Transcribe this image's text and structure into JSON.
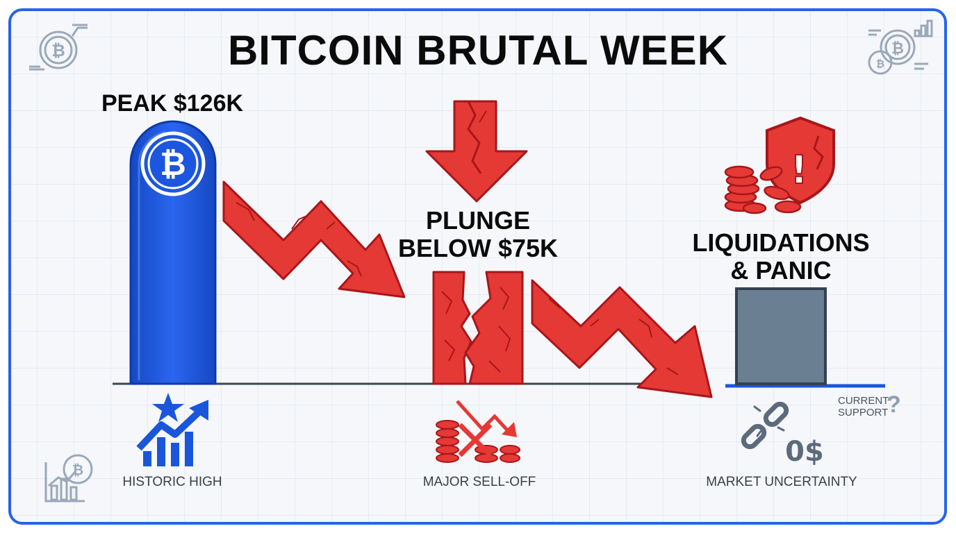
{
  "title": "BITCOIN BRUTAL WEEK",
  "stages": {
    "peak": {
      "label": "PEAK $126K",
      "caption": "HISTORIC HIGH"
    },
    "plunge": {
      "label_line1": "PLUNGE",
      "label_line2": "BELOW $75K",
      "caption": "MAJOR SELL-OFF"
    },
    "liquidations": {
      "label_line1": "LIQUIDATIONS",
      "label_line2": "& PANIC",
      "caption": "MARKET UNCERTAINTY"
    }
  },
  "support_note": {
    "line1": "CURRENT",
    "line2": "SUPPORT",
    "mark": "?"
  },
  "glyphs": {
    "bitcoin": "₿",
    "exclaim": "!",
    "zero_dollar": "0$"
  },
  "colors": {
    "blue": "#1a56db",
    "red": "#e53935",
    "slate": "#6b7f93",
    "frame": "#2563eb",
    "grid": "#dde4ed"
  }
}
